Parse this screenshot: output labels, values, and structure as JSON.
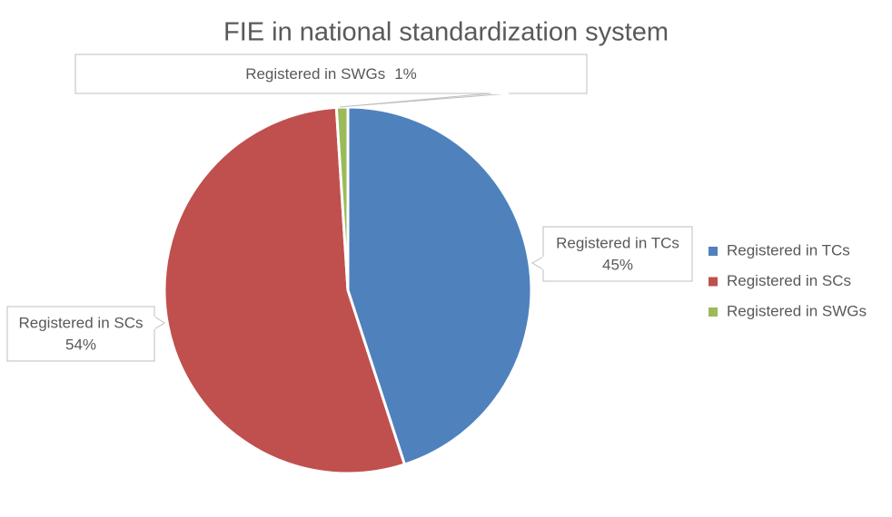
{
  "chart_data": {
    "type": "pie",
    "title": "FIE in national standardization system",
    "categories": [
      "Registered in TCs",
      "Registered in SCs",
      "Registered in SWGs"
    ],
    "values": [
      45,
      54,
      1
    ],
    "value_labels": [
      "45%",
      "54%",
      "1%"
    ],
    "colors": [
      "#4f81bd",
      "#c0504d",
      "#9bbb59"
    ],
    "legend": "right"
  }
}
